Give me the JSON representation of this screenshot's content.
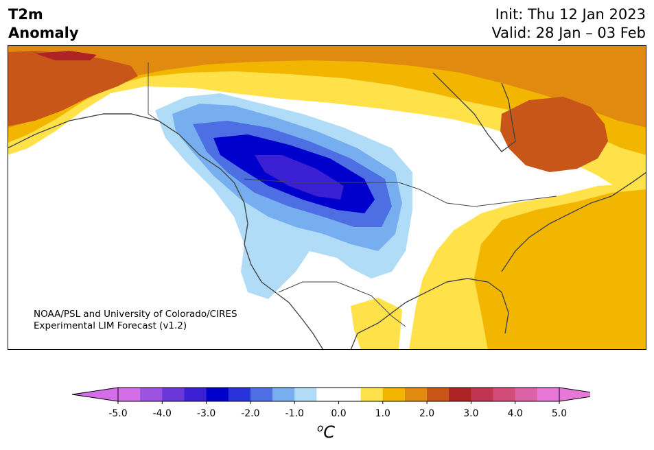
{
  "title": {
    "line1": "T2m",
    "line2": "Anomaly"
  },
  "dates": {
    "init": "Init: Thu 12 Jan 2023",
    "valid": "Valid: 28 Jan – 03 Feb"
  },
  "credit": {
    "line1": "NOAA/PSL and University of Colorado/CIRES",
    "line2": "Experimental LIM Forecast (v1.2)"
  },
  "colorbar": {
    "unit_prefix": "o",
    "unit_symbol": "C",
    "ticks": [
      "-5.0",
      "-4.0",
      "-3.0",
      "-2.0",
      "-1.0",
      "0.0",
      "1.0",
      "2.0",
      "3.0",
      "4.0",
      "5.0"
    ],
    "colors": [
      "#d36ee8",
      "#9b52de",
      "#6b37d8",
      "#3b1fd2",
      "#0000cd",
      "#2733d8",
      "#4e6ee4",
      "#76aef0",
      "#b0dcf8",
      "#ffffff",
      "#ffffff",
      "#ffe24a",
      "#f2b600",
      "#e08a10",
      "#c85618",
      "#ae2424",
      "#c03650",
      "#d24c78",
      "#dc62a8",
      "#e878d8"
    ],
    "under_color": "#d36ee8",
    "over_color": "#e878d8"
  }
}
